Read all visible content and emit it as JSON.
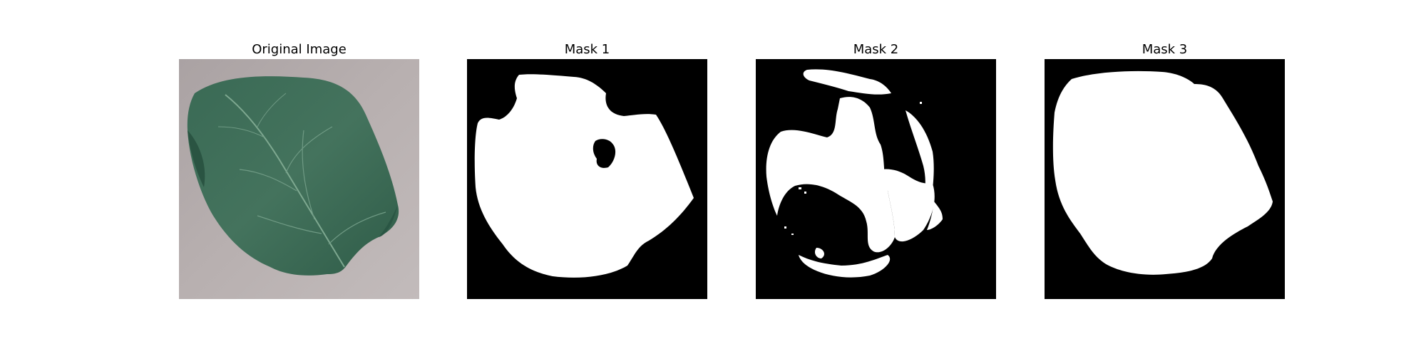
{
  "figure": {
    "panels": [
      {
        "title": "Original Image"
      },
      {
        "title": "Mask 1"
      },
      {
        "title": "Mask 2"
      },
      {
        "title": "Mask 3"
      }
    ]
  },
  "colors": {
    "background": "#ffffff",
    "mask_background": "#000000",
    "mask_foreground": "#ffffff",
    "leaf_green": "#3f6e58",
    "surface_gray": "#b6aeae"
  }
}
